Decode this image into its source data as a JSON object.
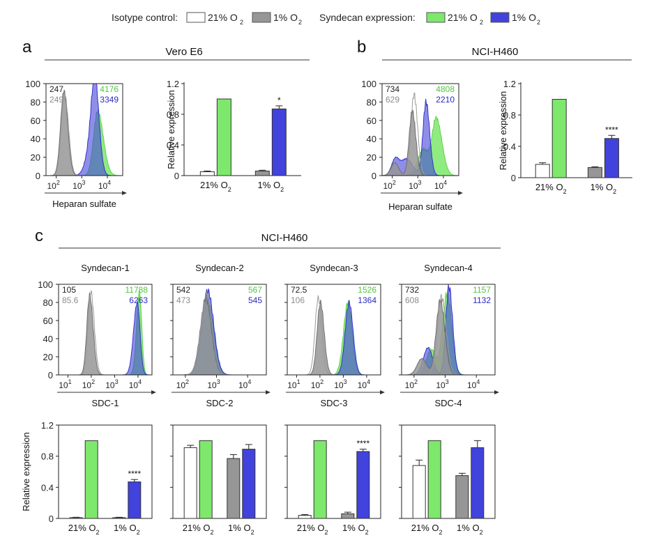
{
  "colors": {
    "ctrl21": "#ffffff",
    "ctrl1": "#969696",
    "syn21": "#7de86b",
    "syn1": "#4242dc",
    "syn21_text": "#4fc83d",
    "syn1_text": "#2a2ac6",
    "ctrl1_text": "#8c8c8c"
  },
  "legend": {
    "isotype_label": "Isotype control:",
    "isotype_21": "21% O",
    "isotype_1": "1% O",
    "syndecan_label": "Syndecan expression:",
    "syndecan_21": "21% O",
    "syndecan_1": "1% O",
    "subscript": "2"
  },
  "panels": {
    "a": {
      "letter": "a",
      "title": "Vero E6"
    },
    "b": {
      "letter": "b",
      "title": "NCI-H460"
    },
    "c": {
      "letter": "c",
      "title": "NCI-H460"
    }
  },
  "hist_common": {
    "y_ticks": [
      "0",
      "20",
      "40",
      "60",
      "80",
      "100"
    ],
    "y_tick_values": [
      0,
      20,
      40,
      60,
      80,
      100
    ]
  },
  "bar_common": {
    "ylabel": "Relative expression",
    "y_ticks": [
      "0",
      "0.4",
      "0.8",
      "1.2"
    ],
    "y_tick_values": [
      0,
      0.4,
      0.8,
      1.2
    ],
    "x_groups": [
      "21% O",
      "1% O"
    ],
    "subscript": "2"
  },
  "chart_data": [
    {
      "id": "a-hist",
      "type": "area",
      "title": "Vero E6",
      "xlabel": "Heparan sulfate",
      "x_scale": "log10",
      "xlim": [
        1.6,
        4.6
      ],
      "ylim": [
        0,
        100
      ],
      "x_ticks": [
        2,
        3,
        4
      ],
      "x_tick_labels": [
        "10",
        "10",
        "10"
      ],
      "x_tick_exps": [
        "2",
        "3",
        "4"
      ],
      "mfi": {
        "ctrl21": "247",
        "ctrl1": "249",
        "syn21": "4176",
        "syn1": "3349"
      },
      "series": [
        {
          "name": "Syndecan 21% O2",
          "key": "syn21",
          "peaks": [
            [
              3.62,
              0.16,
              0.22,
              70
            ]
          ]
        },
        {
          "name": "Syndecan 1% O2",
          "key": "syn1",
          "peaks": [
            [
              3.52,
              0.14,
              0.16,
              87
            ],
            [
              3.36,
              0.2,
              0.2,
              30
            ]
          ]
        },
        {
          "name": "Isotype 21% O2",
          "key": "ctrl21",
          "peaks": [
            [
              2.33,
              0.13,
              0.15,
              88
            ]
          ]
        },
        {
          "name": "Isotype 1% O2",
          "key": "ctrl1",
          "peaks": [
            [
              2.3,
              0.13,
              0.15,
              92
            ]
          ]
        }
      ]
    },
    {
      "id": "a-bar",
      "type": "bar",
      "categories": [
        "21% O2",
        "1% O2"
      ],
      "series": [
        {
          "name": "Isotype 21% O2",
          "key": "ctrl21",
          "values": [
            0.05,
            null
          ],
          "errors": [
            0.01,
            null
          ]
        },
        {
          "name": "Syndecan 21% O2",
          "key": "syn21",
          "values": [
            1.0,
            null
          ],
          "errors": [
            0,
            null
          ]
        },
        {
          "name": "Isotype 1% O2",
          "key": "ctrl1",
          "values": [
            null,
            0.06
          ],
          "errors": [
            null,
            0.01
          ]
        },
        {
          "name": "Syndecan 1% O2",
          "key": "syn1",
          "values": [
            null,
            0.87
          ],
          "errors": [
            null,
            0.04
          ]
        }
      ],
      "significance": [
        {
          "over": "Syndecan 1% O2",
          "label": "*"
        }
      ],
      "ylim": [
        0,
        1.2
      ],
      "ylabel": "Relative expression"
    },
    {
      "id": "b-hist",
      "type": "area",
      "title": "NCI-H460",
      "xlabel": "Heparan sulfate",
      "x_scale": "log10",
      "xlim": [
        1.6,
        4.6
      ],
      "ylim": [
        0,
        100
      ],
      "x_ticks": [
        2,
        3,
        4
      ],
      "x_tick_labels": [
        "10",
        "10",
        "10"
      ],
      "x_tick_exps": [
        "2",
        "3",
        "4"
      ],
      "mfi": {
        "ctrl21": "734",
        "ctrl1": "629",
        "syn21": "4808",
        "syn1": "2210"
      },
      "series": [
        {
          "name": "Syndecan 21% O2",
          "key": "syn21",
          "peaks": [
            [
              3.72,
              0.17,
              0.22,
              62
            ],
            [
              3.2,
              0.2,
              0.2,
              28
            ]
          ]
        },
        {
          "name": "Syndecan 1% O2",
          "key": "syn1",
          "peaks": [
            [
              3.32,
              0.12,
              0.14,
              80
            ],
            [
              2.12,
              0.15,
              0.15,
              18
            ],
            [
              2.55,
              0.2,
              0.25,
              18
            ]
          ]
        },
        {
          "name": "Isotype 21% O2",
          "key": "ctrl21",
          "peaks": [
            [
              2.85,
              0.12,
              0.14,
              88
            ]
          ]
        },
        {
          "name": "Isotype 1% O2",
          "key": "ctrl1",
          "peaks": [
            [
              2.78,
              0.12,
              0.14,
              70
            ],
            [
              2.1,
              0.15,
              0.15,
              14
            ]
          ]
        }
      ]
    },
    {
      "id": "b-bar",
      "type": "bar",
      "categories": [
        "21% O2",
        "1% O2"
      ],
      "series": [
        {
          "name": "Isotype 21% O2",
          "key": "ctrl21",
          "values": [
            0.17,
            null
          ],
          "errors": [
            0.02,
            null
          ]
        },
        {
          "name": "Syndecan 21% O2",
          "key": "syn21",
          "values": [
            1.0,
            null
          ],
          "errors": [
            0,
            null
          ]
        },
        {
          "name": "Isotype 1% O2",
          "key": "ctrl1",
          "values": [
            null,
            0.13
          ],
          "errors": [
            null,
            0.01
          ]
        },
        {
          "name": "Syndecan 1% O2",
          "key": "syn1",
          "values": [
            null,
            0.5
          ],
          "errors": [
            null,
            0.04
          ]
        }
      ],
      "significance": [
        {
          "over": "Syndecan 1% O2",
          "label": "****"
        }
      ],
      "ylim": [
        0,
        1.2
      ],
      "ylabel": "Relative expression"
    },
    {
      "id": "c1-hist",
      "type": "area",
      "title": "Syndecan-1",
      "xlabel": "SDC-1",
      "x_scale": "log10",
      "xlim": [
        0.6,
        4.6
      ],
      "ylim": [
        0,
        100
      ],
      "x_ticks": [
        1,
        2,
        3,
        4
      ],
      "x_tick_labels": [
        "10",
        "10",
        "10",
        "10"
      ],
      "x_tick_exps": [
        "1",
        "2",
        "3",
        "4"
      ],
      "mfi": {
        "ctrl21": "105",
        "ctrl1": "85.6",
        "syn21": "11788",
        "syn1": "6263"
      },
      "series": [
        {
          "name": "Syndecan 21% O2",
          "key": "syn21",
          "peaks": [
            [
              4.06,
              0.12,
              0.1,
              92
            ]
          ]
        },
        {
          "name": "Syndecan 1% O2",
          "key": "syn1",
          "peaks": [
            [
              3.97,
              0.16,
              0.12,
              80
            ]
          ]
        },
        {
          "name": "Isotype 21% O2",
          "key": "ctrl21",
          "peaks": [
            [
              1.98,
              0.12,
              0.15,
              92
            ]
          ]
        },
        {
          "name": "Isotype 1% O2",
          "key": "ctrl1",
          "peaks": [
            [
              1.93,
              0.12,
              0.15,
              88
            ]
          ]
        }
      ]
    },
    {
      "id": "c2-hist",
      "type": "area",
      "title": "Syndecan-2",
      "xlabel": "SDC-2",
      "x_scale": "log10",
      "xlim": [
        1.6,
        4.6
      ],
      "ylim": [
        0,
        100
      ],
      "x_ticks": [
        2,
        3,
        4
      ],
      "x_tick_labels": [
        "10",
        "10",
        "10"
      ],
      "x_tick_exps": [
        "2",
        "3",
        "4"
      ],
      "mfi": {
        "ctrl21": "542",
        "ctrl1": "473",
        "syn21": "567",
        "syn1": "545"
      },
      "series": [
        {
          "name": "Syndecan 21% O2",
          "key": "syn21",
          "peaks": [
            [
              2.72,
              0.19,
              0.19,
              82
            ]
          ]
        },
        {
          "name": "Syndecan 1% O2",
          "key": "syn1",
          "peaks": [
            [
              2.72,
              0.19,
              0.19,
              93
            ]
          ]
        },
        {
          "name": "Isotype 21% O2",
          "key": "ctrl21",
          "peaks": [
            [
              2.68,
              0.18,
              0.18,
              90
            ]
          ]
        },
        {
          "name": "Isotype 1% O2",
          "key": "ctrl1",
          "peaks": [
            [
              2.66,
              0.18,
              0.18,
              84
            ]
          ]
        }
      ]
    },
    {
      "id": "c3-hist",
      "type": "area",
      "title": "Syndecan-3",
      "xlabel": "SDC-3",
      "x_scale": "log10",
      "xlim": [
        0.6,
        4.6
      ],
      "ylim": [
        0,
        100
      ],
      "x_ticks": [
        1,
        2,
        3,
        4
      ],
      "x_tick_labels": [
        "10",
        "10",
        "10",
        "10"
      ],
      "x_tick_exps": [
        "1",
        "2",
        "3",
        "4"
      ],
      "mfi": {
        "ctrl21": "72.5",
        "ctrl1": "106",
        "syn21": "1526",
        "syn1": "1364"
      },
      "series": [
        {
          "name": "Syndecan 21% O2",
          "key": "syn21",
          "peaks": [
            [
              3.2,
              0.19,
              0.18,
              80
            ]
          ]
        },
        {
          "name": "Syndecan 1% O2",
          "key": "syn1",
          "peaks": [
            [
              3.25,
              0.17,
              0.17,
              80
            ]
          ]
        },
        {
          "name": "Isotype 21% O2",
          "key": "ctrl21",
          "peaks": [
            [
              1.93,
              0.14,
              0.15,
              85
            ]
          ]
        },
        {
          "name": "Isotype 1% O2",
          "key": "ctrl1",
          "peaks": [
            [
              2.02,
              0.14,
              0.16,
              80
            ]
          ]
        }
      ]
    },
    {
      "id": "c4-hist",
      "type": "area",
      "title": "Syndecan-4",
      "xlabel": "SDC-4",
      "x_scale": "log10",
      "xlim": [
        1.6,
        4.6
      ],
      "ylim": [
        0,
        100
      ],
      "x_ticks": [
        2,
        3,
        4
      ],
      "x_tick_labels": [
        "10",
        "10",
        "10"
      ],
      "x_tick_exps": [
        "2",
        "3",
        "4"
      ],
      "mfi": {
        "ctrl21": "732",
        "ctrl1": "608",
        "syn21": "1157",
        "syn1": "1132"
      },
      "series": [
        {
          "name": "Syndecan 21% O2",
          "key": "syn21",
          "peaks": [
            [
              3.06,
              0.14,
              0.15,
              90
            ],
            [
              2.55,
              0.15,
              0.15,
              28
            ]
          ]
        },
        {
          "name": "Syndecan 1% O2",
          "key": "syn1",
          "peaks": [
            [
              3.12,
              0.1,
              0.12,
              98
            ],
            [
              2.45,
              0.15,
              0.15,
              30
            ]
          ]
        },
        {
          "name": "Isotype 21% O2",
          "key": "ctrl21",
          "peaks": [
            [
              2.88,
              0.13,
              0.15,
              86
            ]
          ]
        },
        {
          "name": "Isotype 1% O2",
          "key": "ctrl1",
          "peaks": [
            [
              2.84,
              0.13,
              0.15,
              82
            ],
            [
              2.25,
              0.15,
              0.15,
              18
            ]
          ]
        }
      ]
    },
    {
      "id": "c1-bar",
      "type": "bar",
      "categories": [
        "21% O2",
        "1% O2"
      ],
      "series": [
        {
          "name": "Isotype 21% O2",
          "key": "ctrl21",
          "values": [
            0.01,
            null
          ],
          "errors": [
            0.005,
            null
          ]
        },
        {
          "name": "Syndecan 21% O2",
          "key": "syn21",
          "values": [
            1.0,
            null
          ],
          "errors": [
            0,
            null
          ]
        },
        {
          "name": "Isotype 1% O2",
          "key": "ctrl1",
          "values": [
            null,
            0.01
          ],
          "errors": [
            null,
            0.005
          ]
        },
        {
          "name": "Syndecan 1% O2",
          "key": "syn1",
          "values": [
            null,
            0.47
          ],
          "errors": [
            null,
            0.03
          ]
        }
      ],
      "significance": [
        {
          "over": "Syndecan 1% O2",
          "label": "****"
        }
      ],
      "ylim": [
        0,
        1.2
      ],
      "ylabel": "Relative expression"
    },
    {
      "id": "c2-bar",
      "type": "bar",
      "categories": [
        "21% O2",
        "1% O2"
      ],
      "series": [
        {
          "name": "Isotype 21% O2",
          "key": "ctrl21",
          "values": [
            0.91,
            null
          ],
          "errors": [
            0.03,
            null
          ]
        },
        {
          "name": "Syndecan 21% O2",
          "key": "syn21",
          "values": [
            1.0,
            null
          ],
          "errors": [
            0,
            null
          ]
        },
        {
          "name": "Isotype 1% O2",
          "key": "ctrl1",
          "values": [
            null,
            0.77
          ],
          "errors": [
            null,
            0.05
          ]
        },
        {
          "name": "Syndecan 1% O2",
          "key": "syn1",
          "values": [
            null,
            0.89
          ],
          "errors": [
            null,
            0.06
          ]
        }
      ],
      "significance": [],
      "ylim": [
        0,
        1.2
      ],
      "ylabel": "Relative expression"
    },
    {
      "id": "c3-bar",
      "type": "bar",
      "categories": [
        "21% O2",
        "1% O2"
      ],
      "series": [
        {
          "name": "Isotype 21% O2",
          "key": "ctrl21",
          "values": [
            0.04,
            null
          ],
          "errors": [
            0.01,
            null
          ]
        },
        {
          "name": "Syndecan 21% O2",
          "key": "syn21",
          "values": [
            1.0,
            null
          ],
          "errors": [
            0,
            null
          ]
        },
        {
          "name": "Isotype 1% O2",
          "key": "ctrl1",
          "values": [
            null,
            0.06
          ],
          "errors": [
            null,
            0.02
          ]
        },
        {
          "name": "Syndecan 1% O2",
          "key": "syn1",
          "values": [
            null,
            0.86
          ],
          "errors": [
            null,
            0.03
          ]
        }
      ],
      "significance": [
        {
          "over": "Syndecan 1% O2",
          "label": "****"
        }
      ],
      "ylim": [
        0,
        1.2
      ],
      "ylabel": "Relative expression"
    },
    {
      "id": "c4-bar",
      "type": "bar",
      "categories": [
        "21% O2",
        "1% O2"
      ],
      "series": [
        {
          "name": "Isotype 21% O2",
          "key": "ctrl21",
          "values": [
            0.68,
            null
          ],
          "errors": [
            0.07,
            null
          ]
        },
        {
          "name": "Syndecan 21% O2",
          "key": "syn21",
          "values": [
            1.0,
            null
          ],
          "errors": [
            0,
            null
          ]
        },
        {
          "name": "Isotype 1% O2",
          "key": "ctrl1",
          "values": [
            null,
            0.55
          ],
          "errors": [
            null,
            0.03
          ]
        },
        {
          "name": "Syndecan 1% O2",
          "key": "syn1",
          "values": [
            null,
            0.91
          ],
          "errors": [
            null,
            0.09
          ]
        }
      ],
      "significance": [],
      "ylim": [
        0,
        1.2
      ],
      "ylabel": "Relative expression"
    }
  ]
}
